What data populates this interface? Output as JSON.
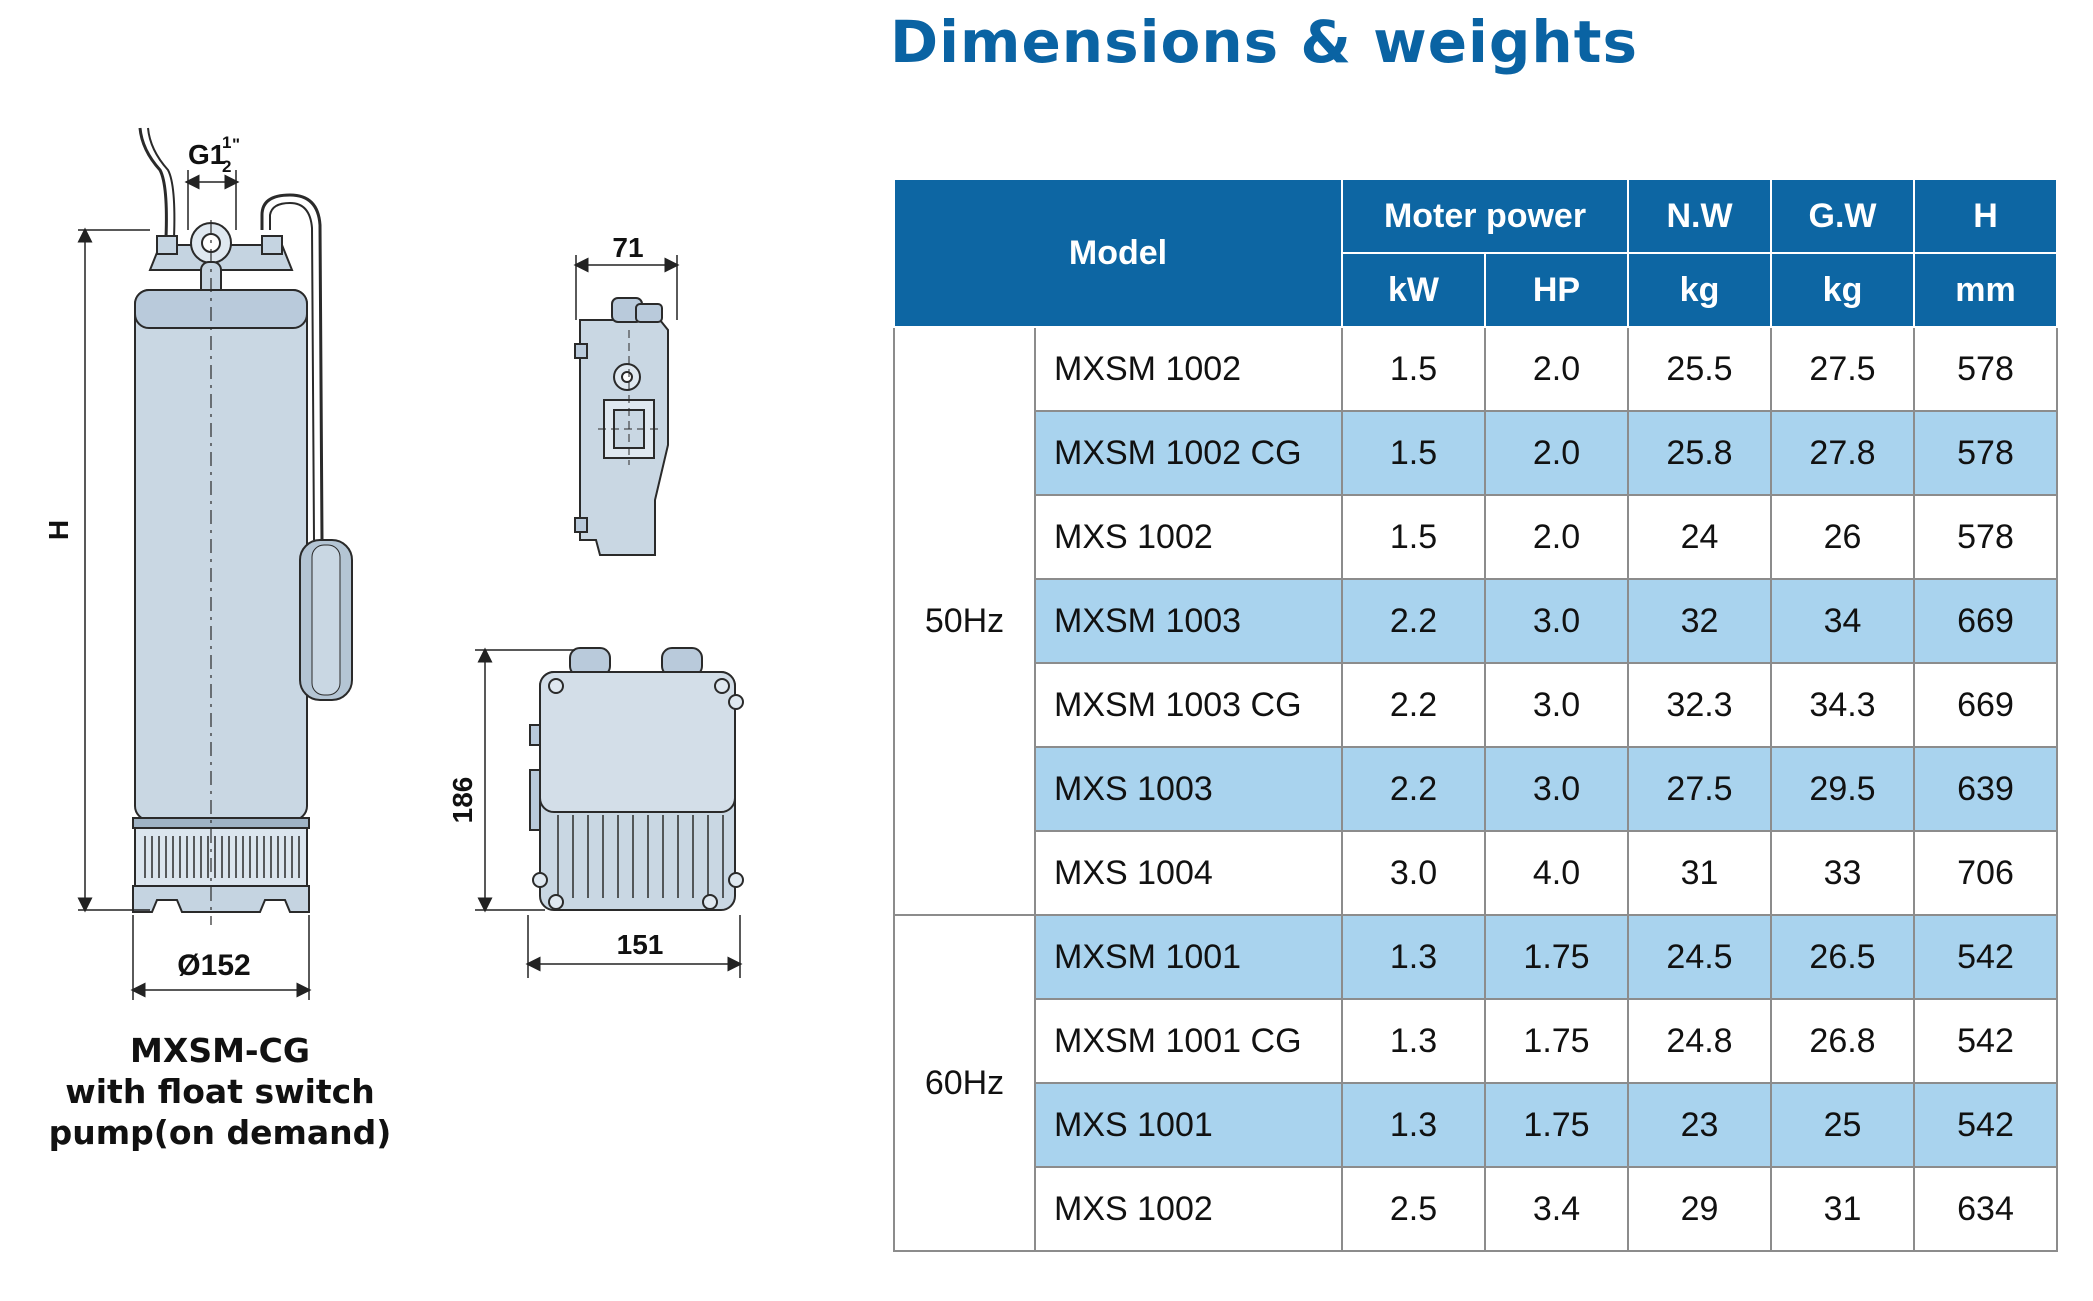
{
  "title": "Dimensions & weights",
  "drawing": {
    "height_label": "H",
    "diameter_label": "Ø152",
    "thread_main": "G1",
    "thread_num": "1",
    "thread_den": "2",
    "thread_mark": "\"",
    "box_side_width": "71",
    "box_height": "186",
    "box_width": "151"
  },
  "caption": {
    "line1": "MXSM-CG",
    "line2": "with float switch",
    "line3": "pump(on demand)"
  },
  "table": {
    "header": {
      "model": "Model",
      "moter_power": "Moter power",
      "nw": "N.W",
      "gw": "G.W",
      "h": "H",
      "kw": "kW",
      "hp": "HP",
      "nw_unit": "kg",
      "gw_unit": "kg",
      "h_unit": "mm"
    },
    "groups": [
      {
        "freq": "50Hz",
        "rows": [
          {
            "model": "MXSM 1002",
            "kw": "1.5",
            "hp": "2.0",
            "nw": "25.5",
            "gw": "27.5",
            "h": "578"
          },
          {
            "model": "MXSM 1002 CG",
            "kw": "1.5",
            "hp": "2.0",
            "nw": "25.8",
            "gw": "27.8",
            "h": "578"
          },
          {
            "model": "MXS 1002",
            "kw": "1.5",
            "hp": "2.0",
            "nw": "24",
            "gw": "26",
            "h": "578"
          },
          {
            "model": "MXSM 1003",
            "kw": "2.2",
            "hp": "3.0",
            "nw": "32",
            "gw": "34",
            "h": "669"
          },
          {
            "model": "MXSM 1003 CG",
            "kw": "2.2",
            "hp": "3.0",
            "nw": "32.3",
            "gw": "34.3",
            "h": "669"
          },
          {
            "model": "MXS 1003",
            "kw": "2.2",
            "hp": "3.0",
            "nw": "27.5",
            "gw": "29.5",
            "h": "639"
          },
          {
            "model": "MXS 1004",
            "kw": "3.0",
            "hp": "4.0",
            "nw": "31",
            "gw": "33",
            "h": "706"
          }
        ]
      },
      {
        "freq": "60Hz",
        "rows": [
          {
            "model": "MXSM 1001",
            "kw": "1.3",
            "hp": "1.75",
            "nw": "24.5",
            "gw": "26.5",
            "h": "542"
          },
          {
            "model": "MXSM 1001 CG",
            "kw": "1.3",
            "hp": "1.75",
            "nw": "24.8",
            "gw": "26.8",
            "h": "542"
          },
          {
            "model": "MXS 1001",
            "kw": "1.3",
            "hp": "1.75",
            "nw": "23",
            "gw": "25",
            "h": "542"
          },
          {
            "model": "MXS 1002",
            "kw": "2.5",
            "hp": "3.4",
            "nw": "29",
            "gw": "31",
            "h": "634"
          }
        ]
      }
    ]
  }
}
